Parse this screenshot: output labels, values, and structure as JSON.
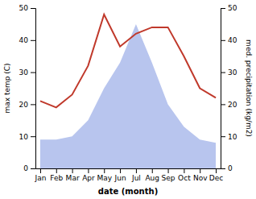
{
  "chart_data": {
    "type": "line",
    "categories": [
      "Jan",
      "Feb",
      "Mar",
      "Apr",
      "May",
      "Jun",
      "Jul",
      "Aug",
      "Sep",
      "Oct",
      "Nov",
      "Dec"
    ],
    "series": [
      {
        "type": "area",
        "color": "#b8c5ee",
        "values": [
          9,
          9,
          10,
          15,
          25,
          33,
          45,
          33,
          20,
          13,
          9,
          8
        ]
      },
      {
        "type": "line",
        "axis": "y2",
        "color": "#c0392b",
        "values": [
          21,
          19,
          23,
          32,
          48,
          38,
          42,
          44,
          44,
          35,
          25,
          22
        ]
      }
    ],
    "xlabel": "date (month)",
    "ylabel": "max temp (C)",
    "y2label": "med. precipitation (kg/m2)",
    "ylim": [
      0,
      50
    ],
    "yticks": [
      0,
      10,
      20,
      30,
      40,
      50
    ],
    "y2lim": [
      0,
      50
    ],
    "y2ticks": [
      0,
      10,
      20,
      30,
      40,
      50
    ],
    "grid": false
  }
}
